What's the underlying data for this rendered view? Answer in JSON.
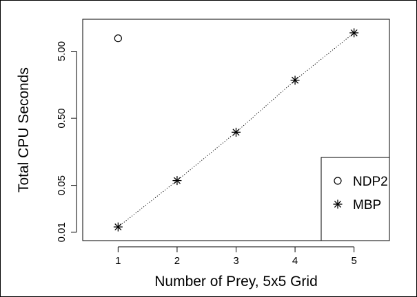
{
  "chart_data": {
    "type": "scatter",
    "xlabel": "Number of Prey, 5x5 Grid",
    "ylabel": "Total CPU Seconds",
    "x_scale": "linear",
    "y_scale": "log",
    "xlim": [
      0.4,
      5.6
    ],
    "ylim": [
      0.0075,
      15
    ],
    "x_ticks": [
      1,
      2,
      3,
      4,
      5
    ],
    "x_tick_labels": [
      "1",
      "2",
      "3",
      "4",
      "5"
    ],
    "y_ticks": [
      0.01,
      0.05,
      0.5,
      5
    ],
    "y_tick_labels": [
      "0.01",
      "0.05",
      "0.50",
      "5.00"
    ],
    "grid": false,
    "legend_position": "bottom-right",
    "series": [
      {
        "name": "NDP2",
        "marker": "open-circle",
        "line": "none",
        "x": [
          1
        ],
        "y": [
          7.8
        ]
      },
      {
        "name": "MBP",
        "marker": "asterisk",
        "line": "dotted",
        "x": [
          1,
          2,
          3,
          4,
          5
        ],
        "y": [
          0.012,
          0.059,
          0.31,
          1.85,
          9.4
        ]
      }
    ]
  }
}
